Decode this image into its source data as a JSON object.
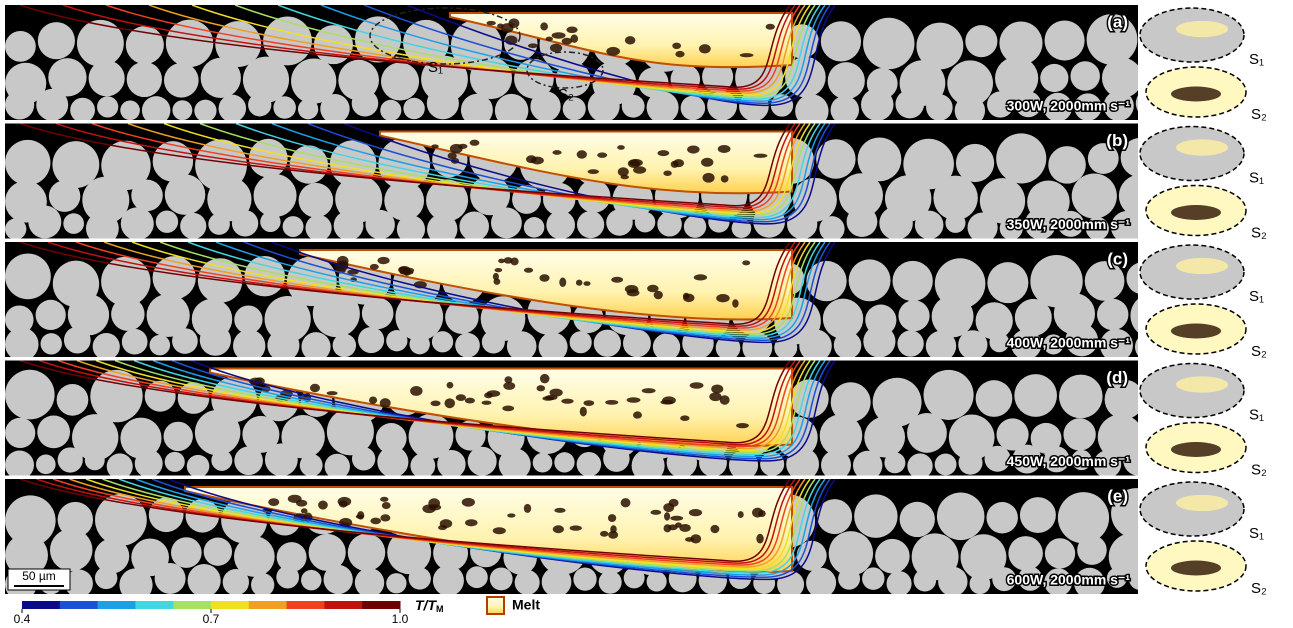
{
  "panels": [
    {
      "label": "(a)",
      "condition": "300W, 2000mm s⁻¹"
    },
    {
      "label": "(b)",
      "condition": "350W, 2000mm s⁻¹"
    },
    {
      "label": "(c)",
      "condition": "400W, 2000mm s⁻¹"
    },
    {
      "label": "(d)",
      "condition": "450W, 2000mm s⁻¹"
    },
    {
      "label": "(e)",
      "condition": "600W, 2000mm s⁻¹"
    }
  ],
  "region_labels": [
    "S₁",
    "S₂"
  ],
  "scale_bar": "50 µm",
  "colorbar": {
    "lim": [
      0.4,
      1
    ],
    "ticks": [
      0.4,
      0.7,
      {
        "value": 1,
        "label": "1.0"
      }
    ],
    "label": "T/T",
    "label_sub": "M",
    "colors": [
      "#0a0a8c",
      "#1a50d8",
      "#1aa0e8",
      "#40d8e0",
      "#a8e060",
      "#f0e020",
      "#f0a020",
      "#f04020",
      "#c01010",
      "#700000"
    ]
  },
  "legend": "Melt"
}
